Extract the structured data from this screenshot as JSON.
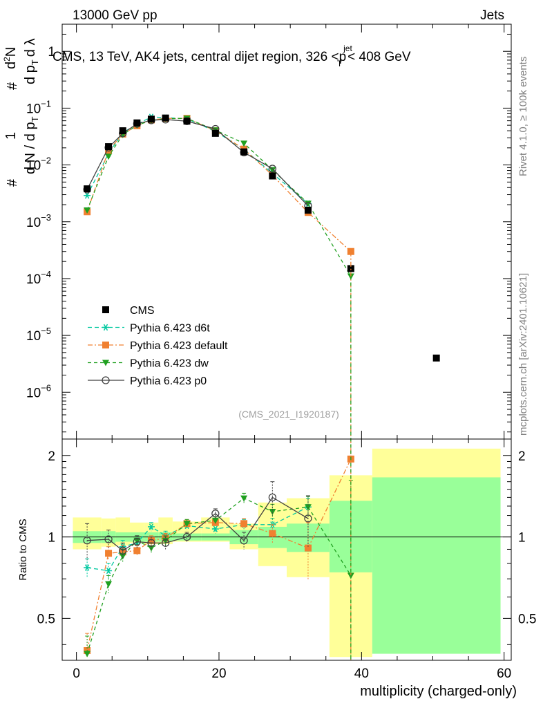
{
  "chart_data": {
    "type": "scatter",
    "header_left": "13000 GeV pp",
    "header_right": "Jets",
    "title": "CMS, 13 TeV, AK4 jets, central dijet region, 326 <",
    "title_sym": "p",
    "title_sup": "jet",
    "title_sub": "T",
    "title_end": "< 408 GeV",
    "side_rivet": "Rivet 4.1.0, ≥ 100k events",
    "side_mcplots": "mcplots.cern.ch [arXiv:2401.10621]",
    "analysis_id": "(CMS_2021_I1920187)",
    "xlabel": "multiplicity (charged-only)",
    "ylabel_top": "1/dN/dpT # d²N/dpT dλ",
    "ylabel_top_parts": {
      "one": "1",
      "hash": "#",
      "dN": "d N / d p",
      "T": "T",
      "d2N": "d",
      "two": "2",
      "N": "N",
      "dpT": "d p",
      "dlam": "d λ"
    },
    "ylabel_bottom": "Ratio to CMS",
    "xlim": [
      -2,
      61
    ],
    "ylim_top": [
      1.5e-07,
      3.0
    ],
    "ylim_bottom": [
      0.35,
      2.3
    ],
    "x_ticks": [
      0,
      20,
      40,
      60
    ],
    "y_ticks_top": [
      {
        "v": 1e-06,
        "base": "10",
        "exp": "−6"
      },
      {
        "v": 1e-05,
        "base": "10",
        "exp": "−5"
      },
      {
        "v": 0.0001,
        "base": "10",
        "exp": "−4"
      },
      {
        "v": 0.001,
        "base": "10",
        "exp": "−3"
      },
      {
        "v": 0.01,
        "base": "10",
        "exp": "−2"
      },
      {
        "v": 0.1,
        "base": "10",
        "exp": "−1"
      },
      {
        "v": 1,
        "base": "1",
        "exp": ""
      }
    ],
    "y_ticks_bottom": [
      {
        "v": 0.5,
        "label": "0.5"
      },
      {
        "v": 1,
        "label": "1"
      },
      {
        "v": 2,
        "label": "2"
      }
    ],
    "bins": [
      {
        "lo": -0.5,
        "hi": 3.5
      },
      {
        "lo": 3.5,
        "hi": 5.5
      },
      {
        "lo": 5.5,
        "hi": 7.5
      },
      {
        "lo": 7.5,
        "hi": 9.5
      },
      {
        "lo": 9.5,
        "hi": 11.5
      },
      {
        "lo": 11.5,
        "hi": 13.5
      },
      {
        "lo": 13.5,
        "hi": 17.5
      },
      {
        "lo": 17.5,
        "hi": 21.5
      },
      {
        "lo": 21.5,
        "hi": 25.5
      },
      {
        "lo": 25.5,
        "hi": 29.5
      },
      {
        "lo": 29.5,
        "hi": 35.5
      },
      {
        "lo": 35.5,
        "hi": 41.5
      },
      {
        "lo": 41.5,
        "hi": 59.5
      }
    ],
    "bands": {
      "green": [
        [
          0.95,
          1.05
        ],
        [
          0.95,
          1.05
        ],
        [
          0.96,
          1.04
        ],
        [
          0.96,
          1.04
        ],
        [
          0.96,
          1.04
        ],
        [
          0.96,
          1.04
        ],
        [
          0.97,
          1.03
        ],
        [
          0.97,
          1.03
        ],
        [
          0.94,
          1.06
        ],
        [
          0.91,
          1.09
        ],
        [
          0.88,
          1.12
        ],
        [
          0.74,
          1.36
        ],
        [
          0.37,
          1.66
        ]
      ],
      "yellow": [
        [
          0.9,
          1.18
        ],
        [
          0.92,
          1.17
        ],
        [
          0.93,
          1.18
        ],
        [
          0.95,
          1.13
        ],
        [
          0.94,
          1.13
        ],
        [
          0.94,
          1.18
        ],
        [
          0.96,
          1.14
        ],
        [
          0.96,
          1.18
        ],
        [
          0.9,
          1.12
        ],
        [
          0.78,
          1.34
        ],
        [
          0.71,
          1.39
        ],
        [
          0.36,
          1.69
        ],
        [
          0.37,
          2.12
        ]
      ]
    },
    "series": [
      {
        "name": "CMS",
        "color": "#000000",
        "marker": "square",
        "dash": "none",
        "x": [
          1.5,
          4.5,
          6.5,
          8.5,
          10.5,
          12.5,
          15.5,
          19.5,
          23.5,
          27.5,
          32.5,
          38.5,
          50.5
        ],
        "y": [
          0.0038,
          0.021,
          0.04,
          0.055,
          0.064,
          0.067,
          0.059,
          0.036,
          0.017,
          0.0064,
          0.0016,
          0.00015,
          4e-06
        ],
        "yerr": [
          0.1,
          0.05,
          0.05,
          0.05,
          0.05,
          0.05,
          0.05,
          0.05,
          0.05,
          0.05,
          0.1,
          0.1,
          0
        ]
      },
      {
        "name": "Pythia 6.423 d6t",
        "color": "#00c8a0",
        "marker": "star",
        "dash": "6,4",
        "x": [
          1.5,
          4.5,
          6.5,
          8.5,
          10.5,
          12.5,
          15.5,
          19.5,
          23.5,
          27.5,
          32.5
        ],
        "y": [
          0.0029,
          0.0158,
          0.037,
          0.052,
          0.07,
          0.068,
          0.065,
          0.039,
          0.0188,
          0.0071,
          0.0021
        ],
        "ratio": [
          0.77,
          0.75,
          0.92,
          0.95,
          1.09,
          1.01,
          1.1,
          1.07,
          1.11,
          1.11,
          1.29
        ],
        "rerr": [
          0.06,
          0.05,
          0.05,
          0.04,
          0.04,
          0.04,
          0.04,
          0.04,
          0.05,
          0.06,
          0.1
        ]
      },
      {
        "name": "Pythia 6.423 default",
        "color": "#f08030",
        "marker": "square",
        "dash": "7,3,2,3",
        "x": [
          1.5,
          4.5,
          6.5,
          8.5,
          10.5,
          12.5,
          15.5,
          19.5,
          23.5,
          27.5,
          32.5,
          38.5
        ],
        "y": [
          0.0015,
          0.018,
          0.035,
          0.049,
          0.062,
          0.066,
          0.066,
          0.04,
          0.019,
          0.0066,
          0.00146,
          0.0003
        ],
        "ratio": [
          0.38,
          0.87,
          0.88,
          0.89,
          0.97,
          0.99,
          1.12,
          1.13,
          1.12,
          1.03,
          0.91,
          1.94
        ],
        "rerr": [
          0.06,
          0.05,
          0.05,
          0.04,
          0.04,
          0.04,
          0.04,
          0.04,
          0.05,
          0.08,
          0.22,
          0.9
        ]
      },
      {
        "name": "Pythia 6.423 dw",
        "color": "#20a020",
        "marker": "triangle-down",
        "dash": "5,4",
        "x": [
          1.5,
          4.5,
          6.5,
          8.5,
          10.5,
          12.5,
          15.5,
          19.5,
          23.5,
          27.5,
          32.5,
          38.5
        ],
        "y": [
          0.0016,
          0.0141,
          0.034,
          0.05,
          0.061,
          0.065,
          0.066,
          0.041,
          0.024,
          0.0082,
          0.0021,
          0.00011
        ],
        "ratio": [
          0.37,
          0.67,
          0.85,
          0.97,
          0.91,
          0.97,
          1.12,
          1.15,
          1.39,
          1.24,
          1.29,
          0.72
        ],
        "rerr": [
          0.06,
          0.05,
          0.05,
          0.04,
          0.04,
          0.04,
          0.04,
          0.04,
          0.06,
          0.08,
          0.12,
          0.9
        ]
      },
      {
        "name": "Pythia 6.423 p0",
        "color": "#404040",
        "marker": "circle-open",
        "dash": "none",
        "x": [
          1.5,
          4.5,
          6.5,
          8.5,
          10.5,
          12.5,
          15.5,
          19.5,
          23.5,
          27.5,
          32.5
        ],
        "y": [
          0.0037,
          0.0202,
          0.036,
          0.053,
          0.061,
          0.063,
          0.059,
          0.043,
          0.0166,
          0.0086,
          0.0019
        ],
        "ratio": [
          0.97,
          0.98,
          0.89,
          0.96,
          0.95,
          0.95,
          1.0,
          1.22,
          0.97,
          1.4,
          1.17
        ],
        "rerr": [
          0.15,
          0.08,
          0.06,
          0.05,
          0.05,
          0.05,
          0.04,
          0.05,
          0.07,
          0.2,
          0.25
        ]
      }
    ]
  }
}
